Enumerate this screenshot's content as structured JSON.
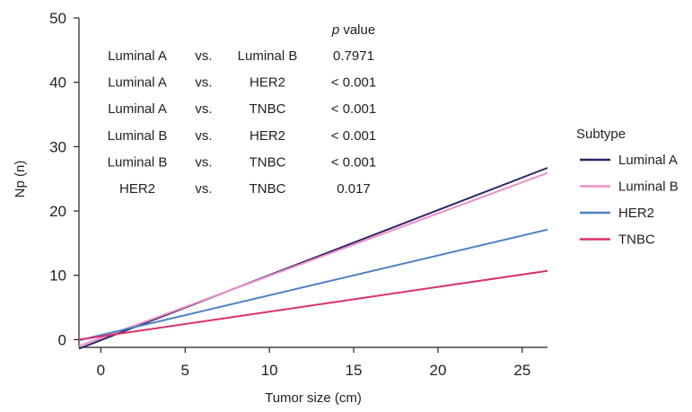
{
  "chart_data": {
    "type": "line",
    "xlabel": "Tumor size (cm)",
    "ylabel": "Np (n)",
    "xlim": [
      -1.3,
      26.5
    ],
    "ylim": [
      -1.2,
      50
    ],
    "x_ticks": [
      0,
      5,
      10,
      15,
      20,
      25
    ],
    "y_ticks": [
      0,
      10,
      20,
      30,
      40,
      50
    ],
    "grid": false,
    "legend": {
      "title": "Subtype",
      "placement": "right"
    },
    "series": [
      {
        "name": "Luminal A",
        "color": "#2d2466",
        "x": [
          -1.3,
          26.5
        ],
        "y": [
          -1.4,
          26.7
        ]
      },
      {
        "name": "Luminal B",
        "color": "#ee8fc6",
        "x": [
          -1.3,
          26.5
        ],
        "y": [
          -1.0,
          25.9
        ]
      },
      {
        "name": "HER2",
        "color": "#4a7fc3",
        "x": [
          -1.3,
          26.5
        ],
        "y": [
          -0.1,
          17.1
        ]
      },
      {
        "name": "TNBC",
        "color": "#d9306e",
        "x": [
          -1.3,
          26.5
        ],
        "y": [
          0.0,
          10.7
        ]
      }
    ],
    "annotation_table": {
      "header": {
        "p_label": "p",
        "value_label": "value"
      },
      "rows": [
        {
          "group1": "Luminal A",
          "vs": "vs.",
          "group2": "Luminal B",
          "p": "0.7971"
        },
        {
          "group1": "Luminal A",
          "vs": "vs.",
          "group2": "HER2",
          "p": "< 0.001"
        },
        {
          "group1": "Luminal A",
          "vs": "vs.",
          "group2": "TNBC",
          "p": "< 0.001"
        },
        {
          "group1": "Luminal B",
          "vs": "vs.",
          "group2": "HER2",
          "p": "< 0.001"
        },
        {
          "group1": "Luminal B",
          "vs": "vs.",
          "group2": "TNBC",
          "p": "< 0.001"
        },
        {
          "group1": "HER2",
          "vs": "vs.",
          "group2": "TNBC",
          "p": "0.017"
        }
      ]
    }
  }
}
